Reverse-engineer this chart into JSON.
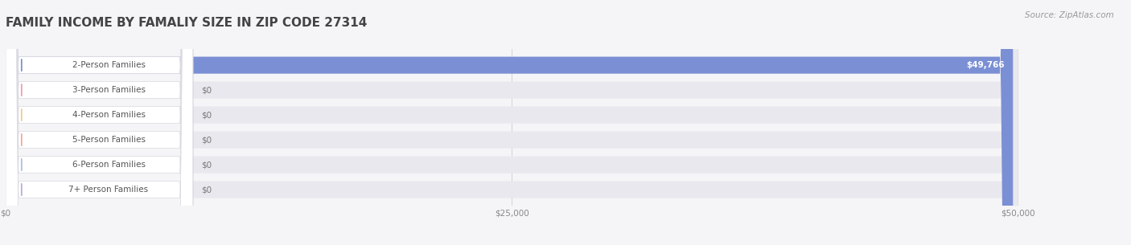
{
  "title": "FAMILY INCOME BY FAMALIY SIZE IN ZIP CODE 27314",
  "source": "Source: ZipAtlas.com",
  "categories": [
    "2-Person Families",
    "3-Person Families",
    "4-Person Families",
    "5-Person Families",
    "6-Person Families",
    "7+ Person Families"
  ],
  "values": [
    49766,
    0,
    0,
    0,
    0,
    0
  ],
  "max_value": 50000,
  "bar_colors": [
    "#7b8fd4",
    "#f09db0",
    "#f5c98a",
    "#f4a898",
    "#a8c0e8",
    "#c0a8d8"
  ],
  "bg_color": "#f5f5f8",
  "bar_bg_color": "#e8e8ee",
  "value_labels": [
    "$49,766",
    "$0",
    "$0",
    "$0",
    "$0",
    "$0"
  ],
  "xtick_labels": [
    "$0",
    "$25,000",
    "$50,000"
  ],
  "xtick_values": [
    0,
    25000,
    50000
  ],
  "title_fontsize": 11,
  "label_fontsize": 7.5,
  "source_fontsize": 7.5,
  "figsize": [
    14.06,
    3.05
  ],
  "dpi": 100
}
